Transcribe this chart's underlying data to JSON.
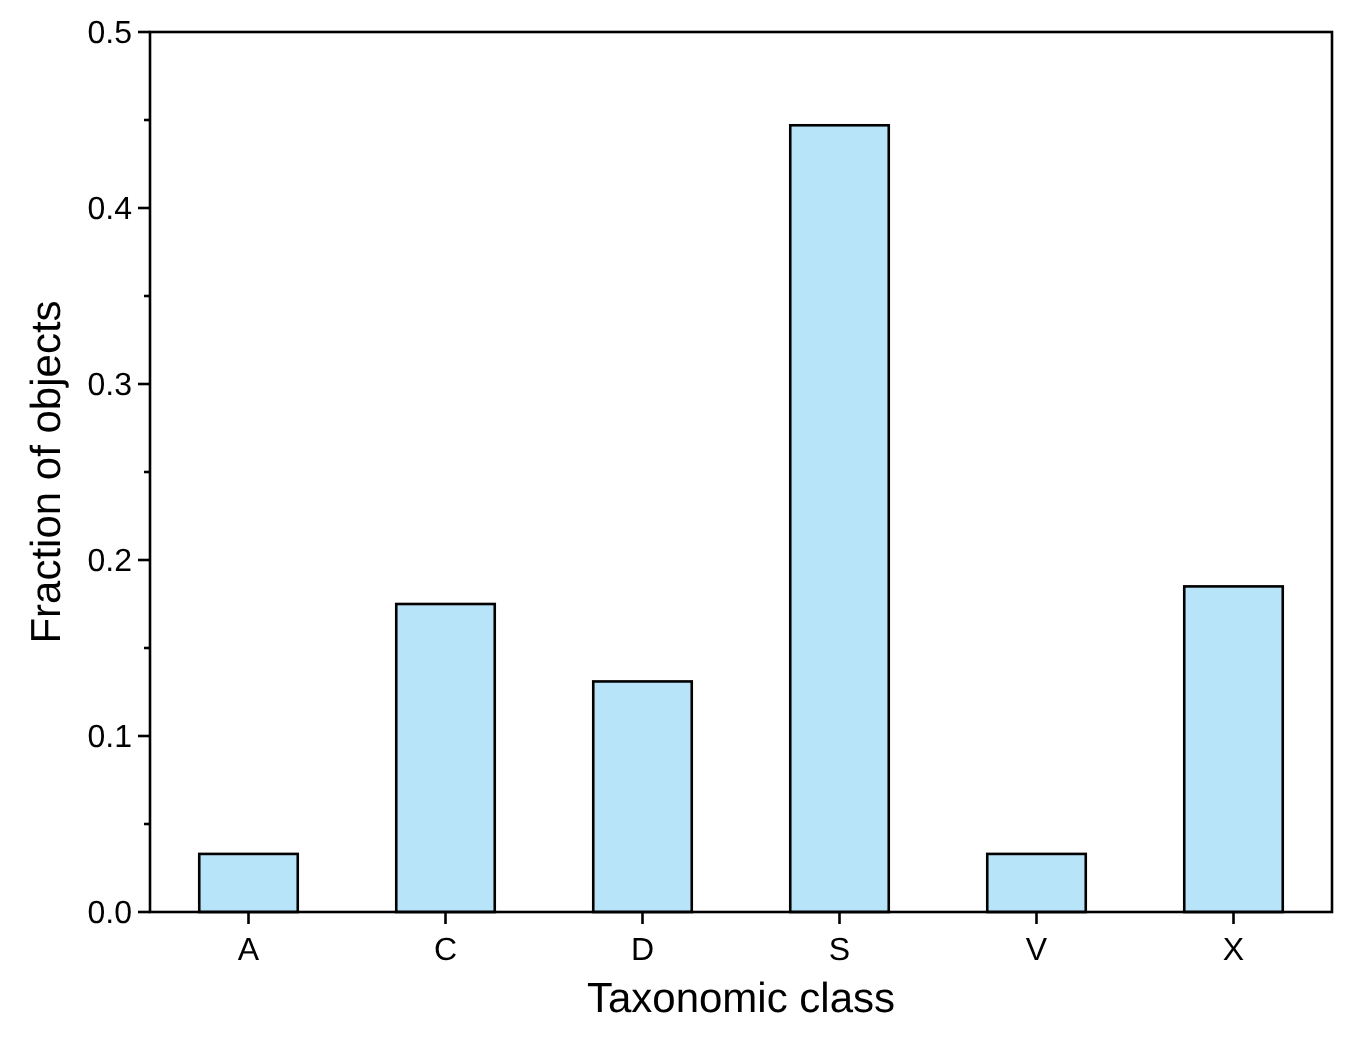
{
  "chart_data": {
    "type": "bar",
    "xlabel": "Taxonomic class",
    "ylabel": "Fraction of objects",
    "categories": [
      "A",
      "C",
      "D",
      "S",
      "V",
      "X"
    ],
    "values": [
      0.033,
      0.175,
      0.131,
      0.447,
      0.033,
      0.185
    ],
    "color": "#b8e4fa",
    "ylim": [
      0,
      0.5
    ],
    "yticks": [
      {
        "value": 0,
        "label": "0.0"
      },
      {
        "value": 0.05,
        "label": null
      },
      0.1,
      {
        "value": 0.15,
        "label": null
      },
      0.2,
      {
        "value": 0.25,
        "label": null
      },
      0.3,
      {
        "value": 0.35,
        "label": null
      },
      0.4,
      {
        "value": 0.45,
        "label": null
      },
      0.5
    ],
    "grid": false
  }
}
